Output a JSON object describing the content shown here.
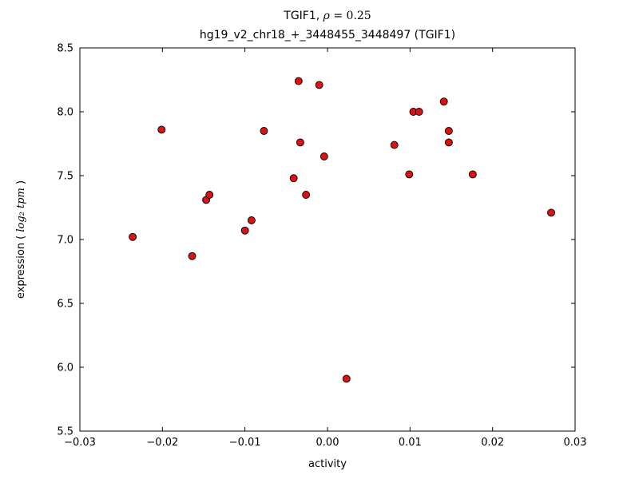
{
  "figure": {
    "title": {
      "prefix": "TGIF1, ",
      "rho": "ρ",
      "rest": " = 0.25"
    },
    "subtitle": "hg19_v2_chr18_+_3448455_3448497 (TGIF1)",
    "ylabel_parts": {
      "prefix": "expression (",
      "math": "log₂ tpm",
      "suffix": ")"
    }
  },
  "chart_data": {
    "type": "scatter",
    "title": "TGIF1, ρ = 0.25",
    "subtitle": "hg19_v2_chr18_+_3448455_3448497 (TGIF1)",
    "xlabel": "activity",
    "ylabel": "expression (log₂ tpm)",
    "xlim": [
      -0.03,
      0.03
    ],
    "ylim": [
      5.5,
      8.5
    ],
    "xticks": [
      -0.03,
      -0.02,
      -0.01,
      0.0,
      0.01,
      0.02,
      0.03
    ],
    "xtick_labels": [
      "−0.03",
      "−0.02",
      "−0.01",
      "0.00",
      "0.01",
      "0.02",
      "0.03"
    ],
    "yticks": [
      5.5,
      6.0,
      6.5,
      7.0,
      7.5,
      8.0,
      8.5
    ],
    "ytick_labels": [
      "5.5",
      "6.0",
      "6.5",
      "7.0",
      "7.5",
      "8.0",
      "8.5"
    ],
    "grid": false,
    "legend": null,
    "marker": {
      "shape": "circle",
      "fill": "#dd1111",
      "edge": "#000000",
      "radius": 4.5
    },
    "points": [
      [
        -0.0236,
        7.02
      ],
      [
        -0.0201,
        7.86
      ],
      [
        -0.0164,
        6.87
      ],
      [
        -0.0147,
        7.31
      ],
      [
        -0.0143,
        7.35
      ],
      [
        -0.01,
        7.07
      ],
      [
        -0.0092,
        7.15
      ],
      [
        -0.0077,
        7.85
      ],
      [
        -0.0041,
        7.48
      ],
      [
        -0.0035,
        8.24
      ],
      [
        -0.0033,
        7.76
      ],
      [
        -0.0026,
        7.35
      ],
      [
        -0.001,
        8.21
      ],
      [
        -0.0004,
        7.65
      ],
      [
        0.0023,
        5.91
      ],
      [
        0.0081,
        7.74
      ],
      [
        0.0099,
        7.51
      ],
      [
        0.0104,
        8.0
      ],
      [
        0.0111,
        8.0
      ],
      [
        0.0141,
        8.08
      ],
      [
        0.0147,
        7.85
      ],
      [
        0.0147,
        7.76
      ],
      [
        0.0176,
        7.51
      ],
      [
        0.0271,
        7.21
      ]
    ]
  }
}
